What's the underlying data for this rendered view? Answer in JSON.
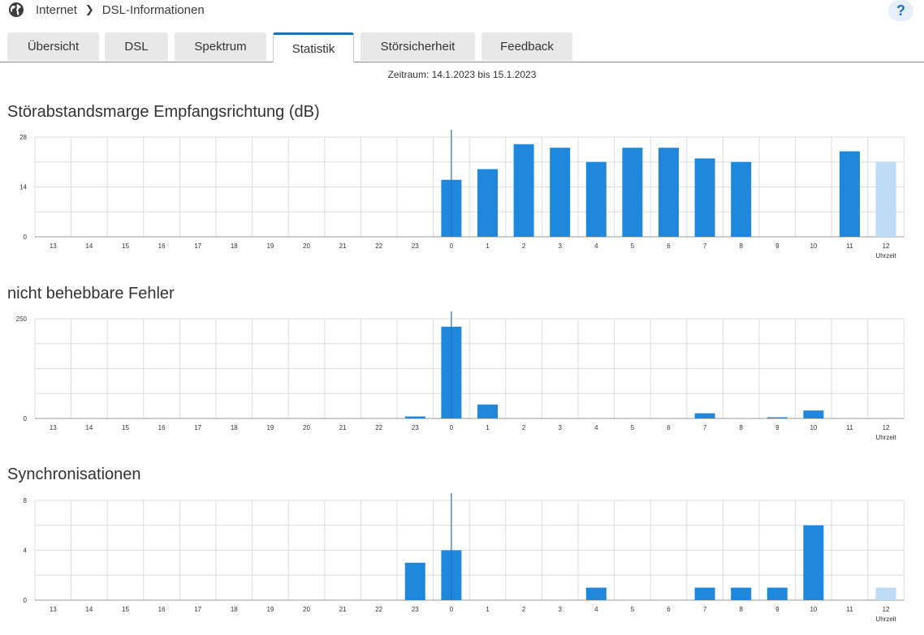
{
  "breadcrumb": {
    "root": "Internet",
    "current": "DSL-Informationen",
    "icon": "globe-icon"
  },
  "help": {
    "label": "?"
  },
  "tabs": [
    {
      "label": "Übersicht",
      "active": false
    },
    {
      "label": "DSL",
      "active": false
    },
    {
      "label": "Spektrum",
      "active": false
    },
    {
      "label": "Statistik",
      "active": true
    },
    {
      "label": "Störsicherheit",
      "active": false
    },
    {
      "label": "Feedback",
      "active": false
    }
  ],
  "period": "Zeitraum: 14.1.2023 bis 15.1.2023",
  "colors": {
    "bar": "#2088dc",
    "bar_current": "#bedcf5",
    "accent": "#1a73c2",
    "grid": "#dddddd"
  },
  "charts": [
    {
      "title": "Störabstandsmarge Empfangsrichtung (dB)",
      "chart_data": {
        "type": "bar",
        "categories": [
          "13",
          "14",
          "15",
          "16",
          "17",
          "18",
          "19",
          "20",
          "21",
          "22",
          "23",
          "0",
          "1",
          "2",
          "3",
          "4",
          "5",
          "6",
          "7",
          "8",
          "9",
          "10",
          "11",
          "12"
        ],
        "values": [
          null,
          null,
          null,
          null,
          null,
          null,
          null,
          null,
          null,
          null,
          null,
          16,
          19,
          26,
          25,
          21,
          25,
          25,
          22,
          21,
          null,
          null,
          24,
          21
        ],
        "current_index": 23,
        "ylim": [
          0,
          28
        ],
        "yticks": [
          "0",
          "14",
          "28"
        ],
        "xlabel": "Uhrzeit",
        "day_marker_index": 11
      }
    },
    {
      "title": "nicht behebbare Fehler",
      "chart_data": {
        "type": "bar",
        "categories": [
          "13",
          "14",
          "15",
          "16",
          "17",
          "18",
          "19",
          "20",
          "21",
          "22",
          "23",
          "0",
          "1",
          "2",
          "3",
          "4",
          "5",
          "6",
          "7",
          "8",
          "9",
          "10",
          "11",
          "12"
        ],
        "values": [
          0,
          0,
          0,
          0,
          0,
          0,
          0,
          0,
          0,
          0,
          5,
          230,
          35,
          0,
          0,
          0,
          0,
          0,
          13,
          0,
          3,
          20,
          0,
          0
        ],
        "current_index": null,
        "ylim": [
          0,
          250
        ],
        "yticks": [
          "0",
          "250"
        ],
        "xlabel": "Uhrzeit",
        "day_marker_index": 11
      }
    },
    {
      "title": "Synchronisationen",
      "chart_data": {
        "type": "bar",
        "categories": [
          "13",
          "14",
          "15",
          "16",
          "17",
          "18",
          "19",
          "20",
          "21",
          "22",
          "23",
          "0",
          "1",
          "2",
          "3",
          "4",
          "5",
          "6",
          "7",
          "8",
          "9",
          "10",
          "11",
          "12"
        ],
        "values": [
          0,
          0,
          0,
          0,
          0,
          0,
          0,
          0,
          0,
          0,
          3,
          4,
          0,
          0,
          0,
          1,
          0,
          0,
          1,
          1,
          1,
          6,
          0,
          1
        ],
        "current_index": 23,
        "ylim": [
          0,
          8
        ],
        "yticks": [
          "0",
          "4",
          "8"
        ],
        "xlabel": "Uhrzeit",
        "day_marker_index": 11
      }
    }
  ]
}
